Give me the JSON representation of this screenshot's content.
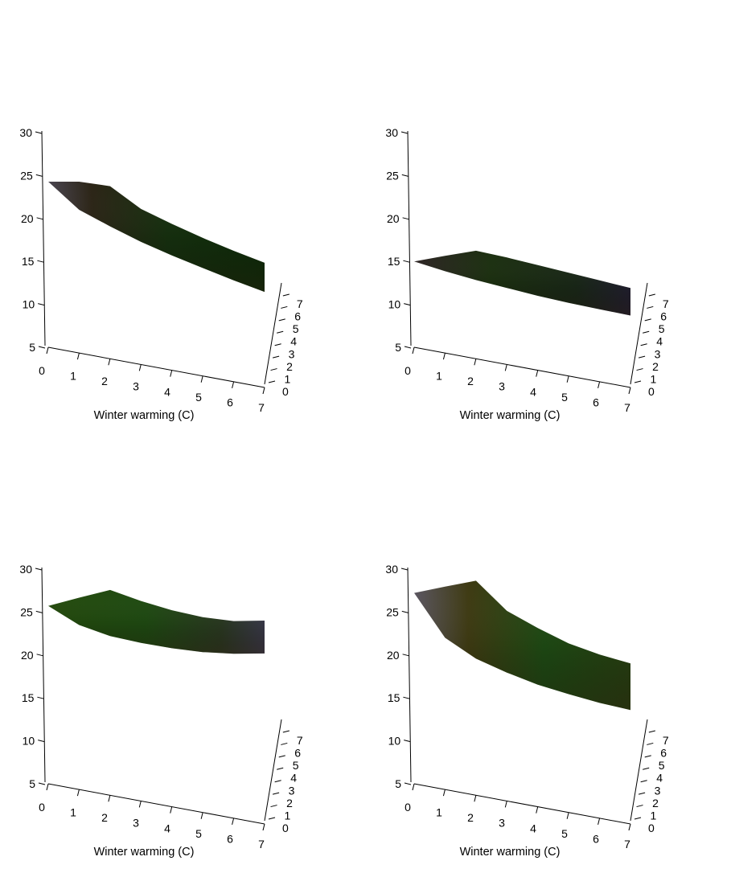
{
  "chart_data": [
    {
      "type": "surface3d",
      "xlabel": "Winter warming (C)",
      "ylabel": "",
      "zlabel": "",
      "x_ticks": [
        "0",
        "1",
        "2",
        "3",
        "4",
        "5",
        "6",
        "7"
      ],
      "depth_ticks": [
        "0",
        "1",
        "2",
        "3",
        "4",
        "5",
        "6",
        "7"
      ],
      "z_ticks": [
        "5",
        "10",
        "15",
        "20",
        "25",
        "30"
      ],
      "xlim": [
        0,
        7
      ],
      "depth_lim": [
        0,
        7
      ],
      "zlim": [
        5,
        30
      ],
      "x": [
        0,
        1,
        2,
        3,
        4,
        5,
        6,
        7
      ],
      "z_front": [
        23.8,
        21.5,
        20.5,
        19.6,
        18.9,
        18.3,
        17.7,
        17.2
      ],
      "z_back": [
        23.8,
        24.8,
        25.3,
        23.6,
        22.8,
        22.1,
        21.5,
        21.0
      ]
    },
    {
      "type": "surface3d",
      "xlabel": "Winter warming (C)",
      "ylabel": "",
      "zlabel": "",
      "x_ticks": [
        "0",
        "1",
        "2",
        "3",
        "4",
        "5",
        "6",
        "7"
      ],
      "depth_ticks": [
        "0",
        "1",
        "2",
        "3",
        "4",
        "5",
        "6",
        "7"
      ],
      "z_ticks": [
        "5",
        "10",
        "15",
        "20",
        "25",
        "30"
      ],
      "xlim": [
        0,
        7
      ],
      "depth_lim": [
        0,
        7
      ],
      "zlim": [
        5,
        30
      ],
      "x": [
        0,
        1,
        2,
        3,
        4,
        5,
        6,
        7
      ],
      "z_front": [
        14.6,
        14.3,
        14.1,
        14.0,
        13.9,
        13.9,
        14.0,
        14.1
      ],
      "z_back": [
        14.6,
        16.1,
        17.6,
        17.7,
        17.7,
        17.7,
        17.7,
        17.7
      ]
    },
    {
      "type": "surface3d",
      "xlabel": "Winter warming (C)",
      "ylabel": "",
      "zlabel": "",
      "x_ticks": [
        "0",
        "1",
        "2",
        "3",
        "4",
        "5",
        "6",
        "7"
      ],
      "depth_ticks": [
        "0",
        "1",
        "2",
        "3",
        "4",
        "5",
        "6",
        "7"
      ],
      "z_ticks": [
        "5",
        "10",
        "15",
        "20",
        "25",
        "30"
      ],
      "xlim": [
        0,
        7
      ],
      "depth_lim": [
        0,
        7
      ],
      "zlim": [
        5,
        30
      ],
      "x": [
        0,
        1,
        2,
        3,
        4,
        5,
        6,
        7
      ],
      "z_front": [
        25.2,
        24.0,
        23.7,
        23.9,
        24.3,
        24.9,
        25.8,
        27.0
      ],
      "z_back": [
        25.2,
        27.2,
        29.2,
        29.0,
        29.0,
        29.3,
        30.0,
        31.3
      ]
    },
    {
      "type": "surface3d",
      "xlabel": "Winter warming (C)",
      "ylabel": "",
      "zlabel": "",
      "x_ticks": [
        "0",
        "1",
        "2",
        "3",
        "4",
        "5",
        "6",
        "7"
      ],
      "depth_ticks": [
        "0",
        "1",
        "2",
        "3",
        "4",
        "5",
        "6",
        "7"
      ],
      "z_ticks": [
        "5",
        "10",
        "15",
        "20",
        "25",
        "30"
      ],
      "xlim": [
        0,
        7
      ],
      "depth_lim": [
        0,
        7
      ],
      "zlim": [
        5,
        30
      ],
      "x": [
        0,
        1,
        2,
        3,
        4,
        5,
        6,
        7
      ],
      "z_front": [
        26.7,
        22.5,
        21.0,
        20.3,
        19.8,
        19.6,
        19.5,
        19.6
      ],
      "z_back": [
        26.7,
        28.5,
        30.3,
        27.8,
        26.8,
        26.0,
        25.7,
        25.7
      ]
    }
  ]
}
